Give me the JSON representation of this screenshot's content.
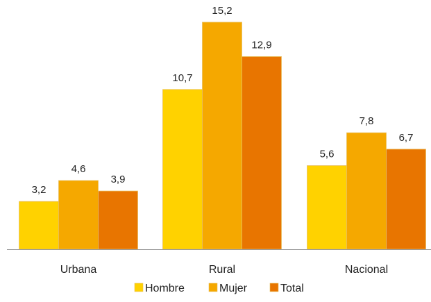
{
  "chart_data": {
    "type": "bar",
    "categories": [
      "Urbana",
      "Rural",
      "Nacional"
    ],
    "series": [
      {
        "name": "Hombre",
        "color": "#FFD200",
        "values": [
          3.2,
          10.7,
          5.6
        ]
      },
      {
        "name": "Mujer",
        "color": "#F5A800",
        "values": [
          4.6,
          15.2,
          7.8
        ]
      },
      {
        "name": "Total",
        "color": "#E87500",
        "values": [
          3.9,
          12.9,
          6.7
        ]
      }
    ],
    "value_labels": [
      [
        "3,2",
        "10,7",
        "5,6"
      ],
      [
        "4,6",
        "15,2",
        "7,8"
      ],
      [
        "3,9",
        "12,9",
        "6,7"
      ]
    ],
    "title": "",
    "xlabel": "",
    "ylabel": "",
    "ylim": [
      0,
      15.2
    ],
    "grid": false,
    "legend_position": "bottom",
    "bar_border_color": "#E8C060",
    "axis_color": "#9A9A9A"
  }
}
